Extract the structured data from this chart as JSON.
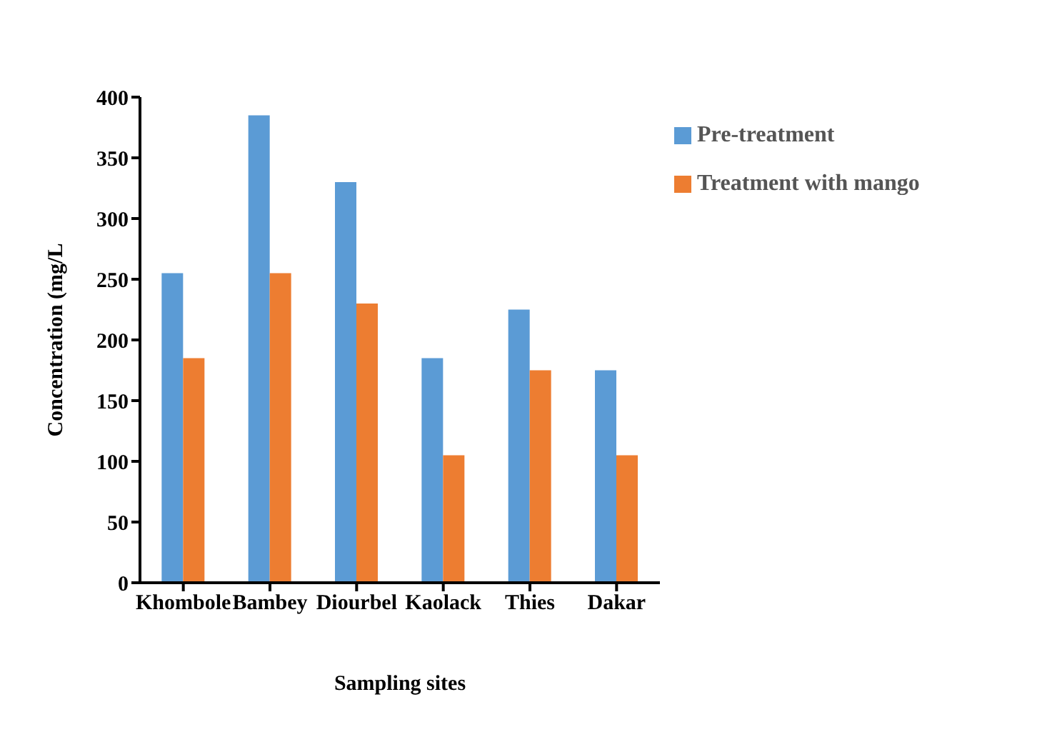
{
  "chart_data": {
    "type": "bar",
    "xlabel": "Sampling sites",
    "ylabel": "Concentration (mg/L",
    "categories": [
      "Khombole",
      "Bambey",
      "Diourbel",
      "Kaolack",
      "Thies",
      "Dakar"
    ],
    "series": [
      {
        "name": "Pre-treatment",
        "color": "#5b9bd5",
        "values": [
          255,
          385,
          330,
          185,
          225,
          175
        ]
      },
      {
        "name": "Treatment with mango",
        "color": "#ed7d31",
        "values": [
          185,
          255,
          230,
          105,
          175,
          105
        ]
      }
    ],
    "ylim": [
      0,
      400
    ],
    "yticks": [
      0,
      50,
      100,
      150,
      200,
      250,
      300,
      350,
      400
    ],
    "grid": false,
    "legend": "top right"
  }
}
